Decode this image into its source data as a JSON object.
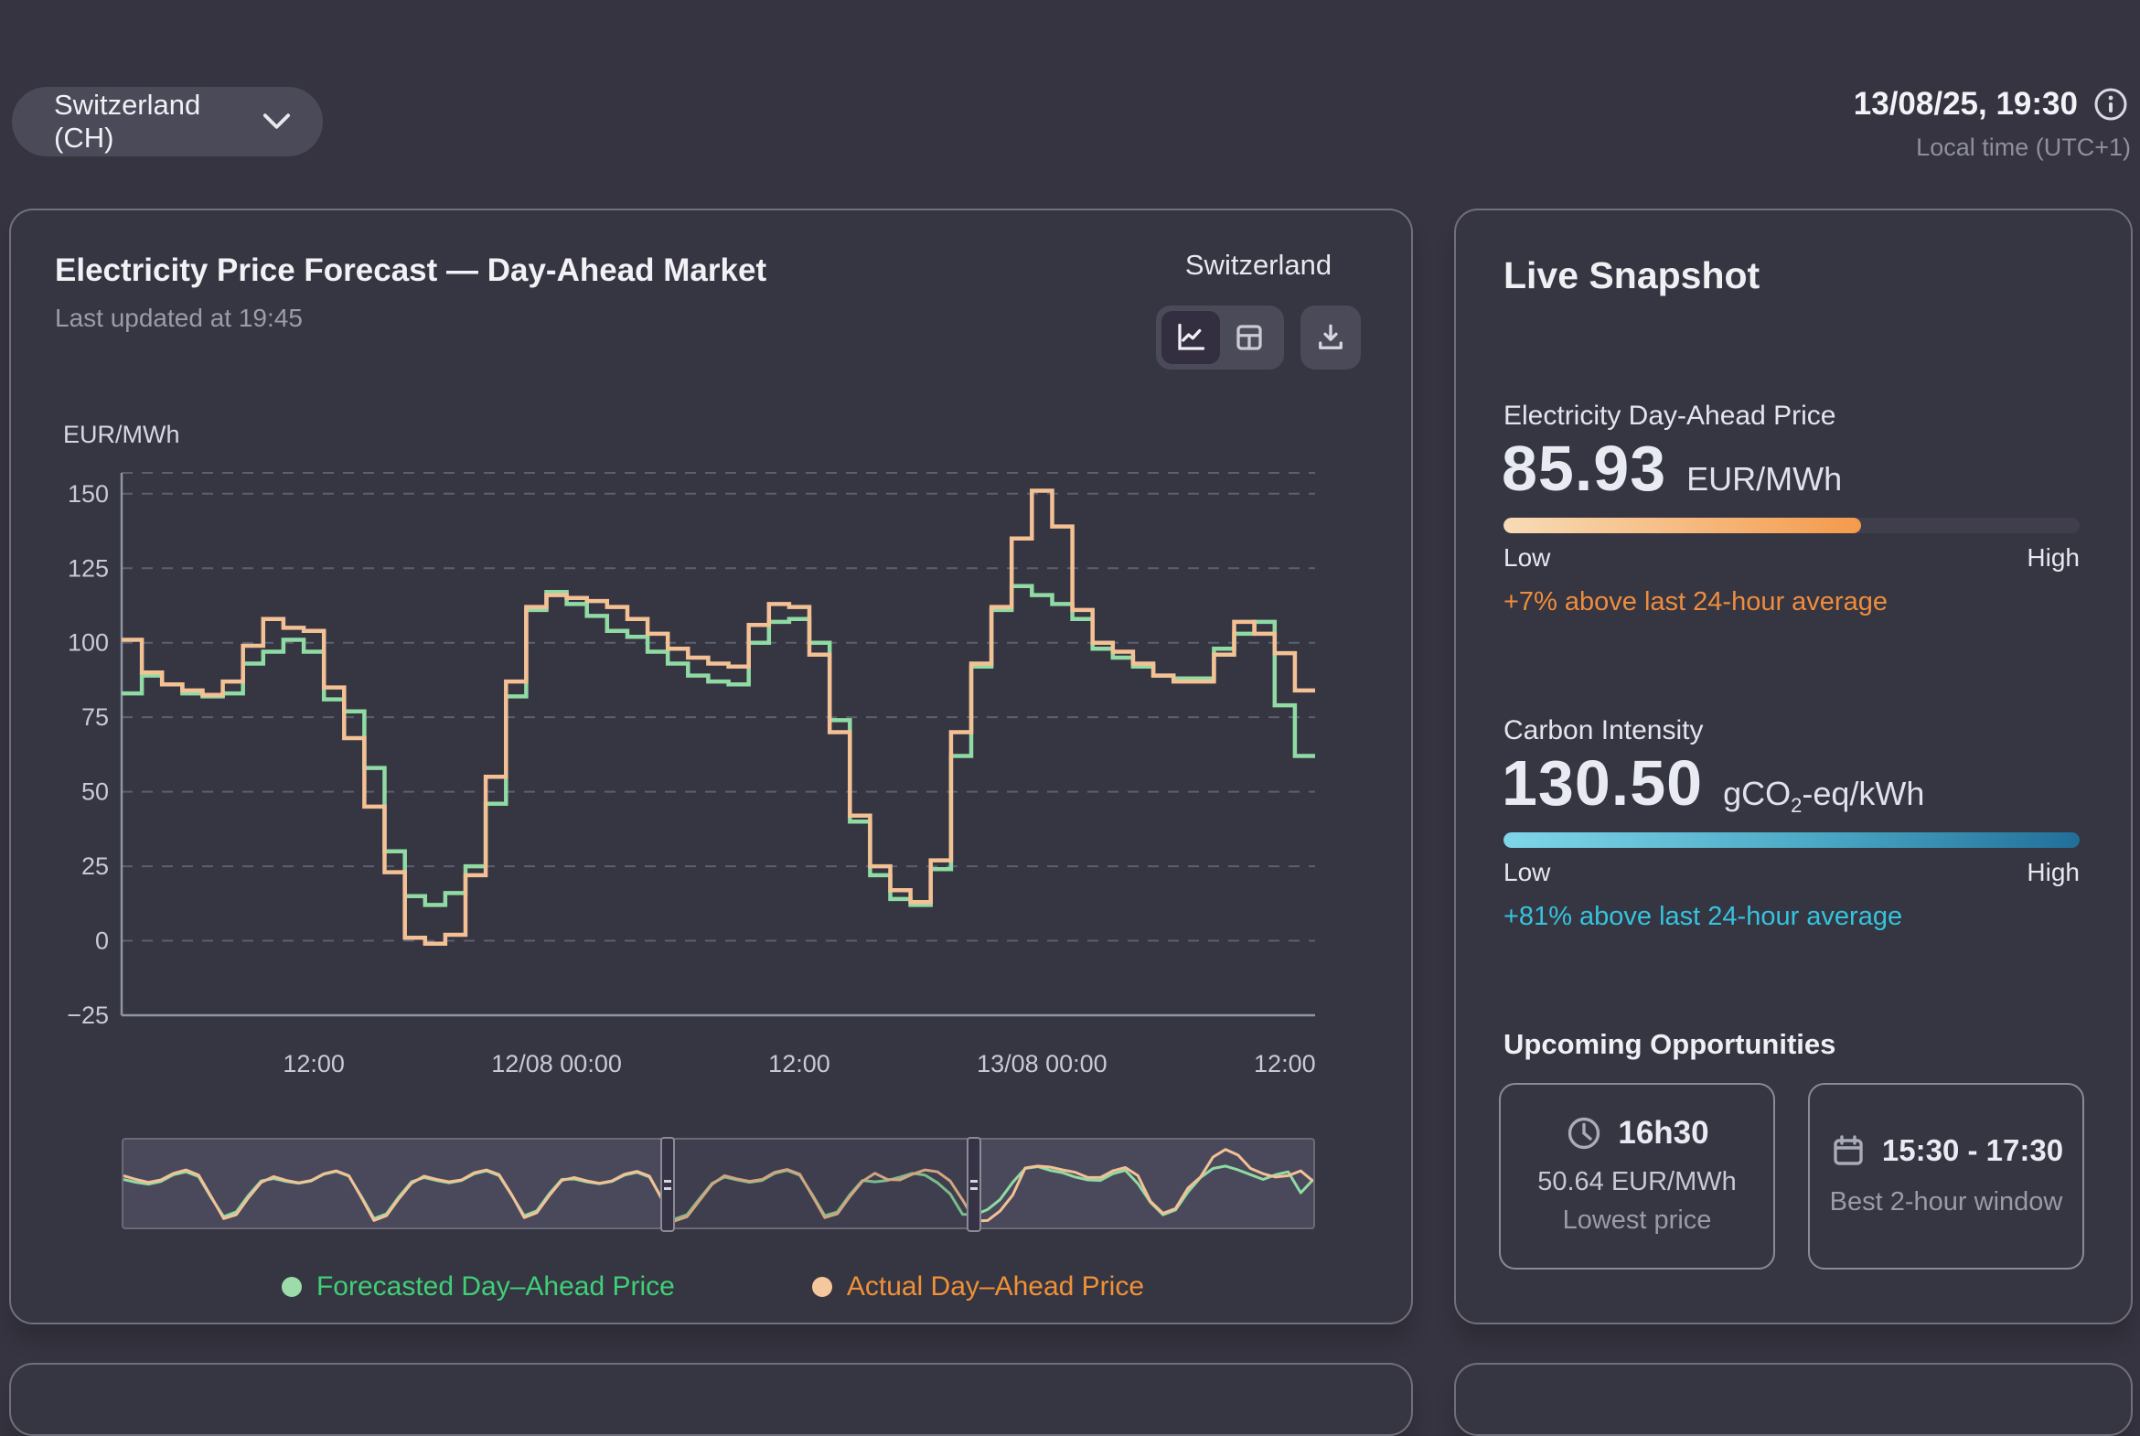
{
  "header": {
    "country_selector": "Switzerland (CH)",
    "datetime": "13/08/25, 19:30",
    "timezone_note": "Local time (UTC+1)"
  },
  "forecast_card": {
    "title": "Electricity Price Forecast — Day-Ahead Market",
    "subtitle": "Last updated at 19:45",
    "region_label": "Switzerland",
    "axis_unit": "EUR/MWh",
    "legend": [
      {
        "label": "Forecasted Day–Ahead Price",
        "text_color": "#3fd077",
        "dot_color": "#9bdcaa"
      },
      {
        "label": "Actual Day–Ahead Price",
        "text_color": "#f09138",
        "dot_color": "#f5c79c"
      }
    ]
  },
  "chart_data": {
    "type": "line",
    "step": true,
    "title": "Electricity Price Forecast — Day-Ahead Market",
    "ylabel": "EUR/MWh",
    "ylim": [
      -25,
      157
    ],
    "yticks": [
      150,
      125,
      100,
      75,
      50,
      25,
      0,
      -25
    ],
    "grid": true,
    "start": "11/08 03:00",
    "interval_hours": 1,
    "xtick_labels": [
      "12:00",
      "12/08 00:00",
      "12:00",
      "13/08 00:00",
      "12:00"
    ],
    "xtick_indices": [
      9,
      21,
      33,
      45,
      57
    ],
    "series": [
      {
        "name": "Forecasted Day–Ahead Price",
        "color": "#8fdba3",
        "values": [
          83,
          89,
          86,
          83,
          82,
          83,
          93,
          97,
          101,
          97,
          81,
          77,
          58,
          30,
          15,
          12,
          16,
          25,
          46,
          82,
          111,
          117,
          113,
          109,
          104,
          102,
          97,
          93,
          89,
          87,
          86,
          100,
          107,
          108,
          100,
          74,
          40,
          22,
          14,
          12,
          24,
          62,
          92,
          111,
          119,
          116,
          113,
          108,
          98,
          95,
          92,
          89,
          88,
          88,
          98,
          103,
          107,
          79,
          62
        ]
      },
      {
        "name": "Actual Day–Ahead Price",
        "color": "#f4c195",
        "values": [
          101,
          90,
          86,
          84,
          82.5,
          87,
          99,
          108,
          105,
          104,
          85,
          68,
          45,
          23,
          1,
          -1,
          2,
          22,
          55,
          87,
          112,
          116,
          115,
          114,
          112,
          108,
          103,
          98,
          95,
          93,
          92,
          106,
          113,
          112,
          96,
          70,
          42,
          25,
          17,
          13,
          27,
          70,
          93,
          112,
          135,
          151,
          139,
          111,
          100,
          97,
          93,
          89,
          87,
          87,
          96,
          107,
          103,
          96.5,
          84
        ]
      }
    ],
    "overview": {
      "legend_note": "brush minimap of full period",
      "forecast": [
        88,
        82,
        78,
        84,
        98,
        104,
        94,
        50,
        10,
        20,
        55,
        85,
        90,
        84,
        80,
        85,
        99,
        105,
        95,
        52,
        6,
        16,
        52,
        83,
        92,
        86,
        81,
        86,
        100,
        106,
        96,
        55,
        12,
        22,
        58,
        88,
        89,
        83,
        79,
        84,
        97,
        103,
        93,
        48,
        5,
        14,
        48,
        80,
        93,
        87,
        82,
        86,
        101,
        107,
        97,
        56,
        12,
        20,
        56,
        86,
        83,
        86,
        93,
        101,
        97,
        81,
        58,
        15,
        14,
        25,
        46,
        82,
        111,
        115,
        107,
        102,
        93,
        87,
        86,
        100,
        107,
        79,
        40,
        14,
        24,
        62,
        92,
        111,
        116,
        108,
        98,
        88,
        98,
        104,
        60,
        88
      ],
      "actual": [
        96,
        88,
        82,
        87,
        101,
        108,
        97,
        52,
        6,
        14,
        50,
        82,
        94,
        86,
        81,
        86,
        100,
        106,
        96,
        50,
        2,
        12,
        48,
        80,
        95,
        88,
        83,
        87,
        102,
        108,
        98,
        56,
        8,
        18,
        54,
        86,
        92,
        85,
        80,
        85,
        99,
        105,
        95,
        46,
        1,
        10,
        44,
        78,
        96,
        89,
        84,
        88,
        103,
        109,
        99,
        54,
        8,
        16,
        52,
        84,
        101,
        88,
        87,
        99,
        108,
        104,
        85,
        45,
        1,
        2,
        22,
        55,
        112,
        116,
        114,
        108,
        103,
        92,
        92,
        106,
        113,
        96,
        42,
        17,
        27,
        70,
        93,
        135,
        151,
        139,
        111,
        100,
        93,
        96,
        106,
        84
      ],
      "brush_fractions": [
        0.457,
        0.715
      ]
    }
  },
  "snapshot": {
    "title": "Live Snapshot",
    "price": {
      "label": "Electricity Day-Ahead Price",
      "value": "85.93",
      "unit": "EUR/MWh",
      "fill_percent": 62,
      "scale_low": "Low",
      "scale_high": "High",
      "delta_note": "+7% above last 24-hour average",
      "delta_color": "#ee8d3d"
    },
    "carbon": {
      "label": "Carbon Intensity",
      "value": "130.50",
      "unit_pre": "gCO",
      "unit_sub": "2",
      "unit_post": "-eq/kWh",
      "fill_percent": 100,
      "scale_low": "Low",
      "scale_high": "High",
      "delta_note": "+81% above last 24-hour average",
      "delta_color": "#35c3dd"
    },
    "opportunities": {
      "title": "Upcoming Opportunities",
      "cards": [
        {
          "icon": "clock-icon",
          "time": "16h30",
          "line1": "50.64 EUR/MWh",
          "line2": "Lowest price"
        },
        {
          "icon": "calendar-icon",
          "time": "15:30 - 17:30",
          "line1": "",
          "line2": "Best 2-hour window"
        }
      ]
    }
  }
}
